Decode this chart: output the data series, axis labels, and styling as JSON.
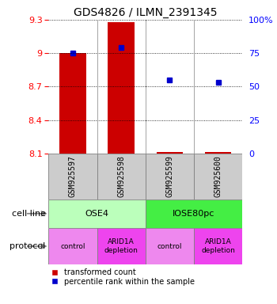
{
  "title": "GDS4826 / ILMN_2391345",
  "samples": [
    "GSM925597",
    "GSM925598",
    "GSM925599",
    "GSM925600"
  ],
  "x_positions": [
    1,
    2,
    3,
    4
  ],
  "transformed_counts": [
    9.0,
    9.28,
    8.115,
    8.113
  ],
  "percentile_ranks": [
    75.0,
    79.0,
    55.0,
    53.0
  ],
  "ylim_left": [
    8.1,
    9.3
  ],
  "ylim_right": [
    0,
    100
  ],
  "yticks_left": [
    8.1,
    8.4,
    8.7,
    9.0,
    9.3
  ],
  "yticks_right": [
    0,
    25,
    50,
    75,
    100
  ],
  "ytick_labels_left": [
    "8.1",
    "8.4",
    "8.7",
    "9",
    "9.3"
  ],
  "ytick_labels_right": [
    "0",
    "25",
    "50",
    "75",
    "100%"
  ],
  "bar_color": "#cc0000",
  "bar_base": 8.1,
  "scatter_color": "#0000cc",
  "cell_line_labels": [
    "OSE4",
    "IOSE80pc"
  ],
  "cell_line_colors": [
    "#bbffbb",
    "#44ee44"
  ],
  "protocol_labels": [
    "control",
    "ARID1A\ndepletion",
    "control",
    "ARID1A\ndepletion"
  ],
  "protocol_colors": [
    "#ee88ee",
    "#ee44ee",
    "#ee88ee",
    "#ee44ee"
  ],
  "cell_line_row_label": "cell line",
  "protocol_row_label": "protocol",
  "legend_red_label": "transformed count",
  "legend_blue_label": "percentile rank within the sample",
  "sample_box_color": "#cccccc",
  "figsize": [
    3.5,
    3.84
  ],
  "dpi": 100
}
